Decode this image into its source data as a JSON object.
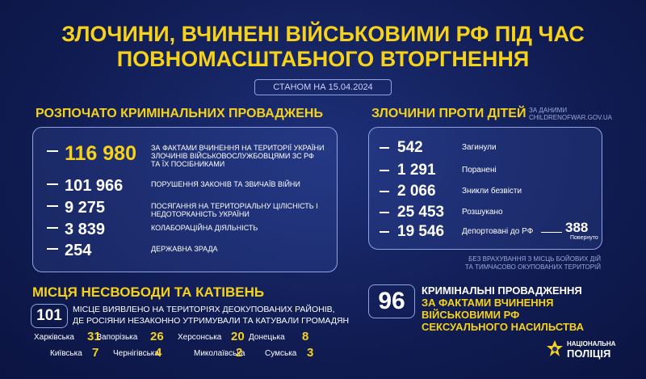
{
  "header": {
    "title_line1": "ЗЛОЧИНИ, ВЧИНЕНІ ВІЙСЬКОВИМИ РФ ПІД ЧАС",
    "title_line2": "ПОВНОМАСШТАБНОГО ВТОРГНЕННЯ",
    "date": "СТАНОМ НА 15.04.2024"
  },
  "cases": {
    "title": "РОЗПОЧАТО КРИМІНАЛЬНИХ ПРОВАДЖЕНЬ",
    "items": [
      {
        "value": "116 980",
        "label": "ЗА ФАКТАМИ ВЧИНЕННЯ НА ТЕРИТОРІЇ УКРАЇНИ ЗЛОЧИНІВ ВІЙСЬКОВОСЛУЖБОВЦЯМИ ЗС РФ ТА ЇХ ПОСІБНИКАМИ"
      },
      {
        "value": "101 966",
        "label": "ПОРУШЕННЯ ЗАКОНІВ ТА ЗВИЧАЇВ ВІЙНИ"
      },
      {
        "value": "9 275",
        "label": "ПОСЯГАННЯ НА ТЕРИТОРІАЛЬНУ ЦІЛІСНІСТЬ І НЕДОТОРКАНІСТЬ УКРАЇНИ"
      },
      {
        "value": "3 839",
        "label": "КОЛАБОРАЦІЙНА ДІЯЛЬНІСТЬ"
      },
      {
        "value": "254",
        "label": "ДЕРЖАВНА ЗРАДА"
      }
    ]
  },
  "children": {
    "title": "ЗЛОЧИНИ ПРОТИ ДІТЕЙ",
    "source": "ЗА ДАНИМИ CHILDRENOFWAR.GOV.UA",
    "items": [
      {
        "value": "542",
        "label": "Загинули"
      },
      {
        "value": "1 291",
        "label": "Поранені"
      },
      {
        "value": "2 066",
        "label": "Зникли безвісти"
      },
      {
        "value": "25 453",
        "label": "Розшукано"
      },
      {
        "value": "19 546",
        "label": "Депортовані до РФ"
      }
    ],
    "returned_value": "388",
    "returned_label": "Повернуто",
    "note_line1": "БЕЗ ВРАХУВАННЯ З МІСЦЬ БОЙОВИХ ДІЙ",
    "note_line2": "ТА ТИМЧАСОВО ОКУПОВАНИХ ТЕРИТОРІЙ"
  },
  "places": {
    "title": "МІСЦЯ НЕСВОБОДИ ТА КАТІВЕНЬ",
    "count": "101",
    "text_line1": "МІСЦЕ ВИЯВЛЕНО НА ТЕРИТОРІЯХ ДЕОКУПОВАНИХ РАЙОНІВ,",
    "text_line2": "ДЕ РОСІЯНИ НЕЗАКОННО УТРИМУВАЛИ ТА КАТУВАЛИ ГРОМАДЯН",
    "regions": [
      {
        "name": "Харківська",
        "value": "31"
      },
      {
        "name": "Запорізька",
        "value": "26"
      },
      {
        "name": "Херсонська",
        "value": "20"
      },
      {
        "name": "Донецька",
        "value": "8"
      },
      {
        "name": "Київська",
        "value": "7"
      },
      {
        "name": "Чернігівська",
        "value": "4"
      },
      {
        "name": "Миколаївська",
        "value": "2"
      },
      {
        "name": "Сумська",
        "value": "3"
      }
    ]
  },
  "sexual": {
    "count": "96",
    "line1": "КРИМІНАЛЬНІ ПРОВАДЖЕННЯ",
    "line2": "ЗА ФАКТАМИ ВЧИНЕННЯ",
    "line3": "ВІЙСЬКОВИМИ РФ",
    "line4": "СЕКСУАЛЬНОГО НАСИЛЬСТВА"
  },
  "logo": {
    "line1": "НАЦІОНАЛЬНА",
    "line2": "ПОЛІЦІЯ"
  }
}
